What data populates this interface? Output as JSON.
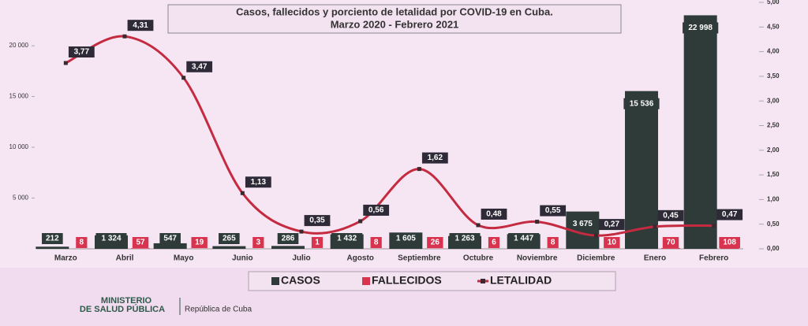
{
  "chart_data": {
    "type": "bar",
    "title": "Casos, fallecidos y porciento de letalidad por COVID-19 en Cuba.",
    "subtitle": "Marzo 2020 - Febrero 2021",
    "categories": [
      "Marzo",
      "Abril",
      "Mayo",
      "Junio",
      "Julio",
      "Agosto",
      "Septiembre",
      "Octubre",
      "Noviembre",
      "Diciembre",
      "Enero",
      "Febrero"
    ],
    "series": [
      {
        "name": "CASOS",
        "color": "#2e3b38",
        "values": [
          212,
          1324,
          547,
          265,
          286,
          1432,
          1605,
          1263,
          1447,
          3675,
          15536,
          22998
        ],
        "value_labels": [
          "212",
          "1 324",
          "547",
          "265",
          "286",
          "1 432",
          "1 605",
          "1 263",
          "1 447",
          "3 675",
          "15 536",
          "22 998"
        ]
      },
      {
        "name": "FALLECIDOS",
        "color": "#d8334f",
        "values": [
          8,
          57,
          19,
          3,
          1,
          8,
          26,
          6,
          8,
          10,
          70,
          108
        ]
      },
      {
        "name": "LETALIDAD",
        "color": "#c42a40",
        "type": "line",
        "axis": "y2",
        "values": [
          3.77,
          4.31,
          3.47,
          1.13,
          0.35,
          0.56,
          1.62,
          0.48,
          0.55,
          0.27,
          0.45,
          0.47
        ],
        "value_labels": [
          "3,77",
          "4,31",
          "3,47",
          "1,13",
          "0,35",
          "0,56",
          "1,62",
          "0,48",
          "0,55",
          "0,27",
          "0,45",
          "0,47"
        ]
      }
    ],
    "ylim": [
      0,
      25000
    ],
    "yticks": [
      {
        "value": 5000,
        "label": "5 000"
      },
      {
        "value": 10000,
        "label": "10 000"
      },
      {
        "value": 15000,
        "label": "15 000"
      },
      {
        "value": 20000,
        "label": "20 000"
      }
    ],
    "y2lim": [
      0,
      5
    ],
    "y2ticks": [
      {
        "value": 0,
        "label": "0,00"
      },
      {
        "value": 0.5,
        "label": "0,50"
      },
      {
        "value": 1,
        "label": "1,00"
      },
      {
        "value": 1.5,
        "label": "1,50"
      },
      {
        "value": 2,
        "label": "2,00"
      },
      {
        "value": 2.5,
        "label": "2,50"
      },
      {
        "value": 3,
        "label": "3,00"
      },
      {
        "value": 3.5,
        "label": "3,50"
      },
      {
        "value": 4,
        "label": "4,00"
      },
      {
        "value": 4.5,
        "label": "4,50"
      },
      {
        "value": 5,
        "label": "5,00"
      }
    ],
    "footer": {
      "line1": "MINISTERIO",
      "line2": "DE SALUD PÚBLICA",
      "line3": "República de Cuba"
    }
  }
}
